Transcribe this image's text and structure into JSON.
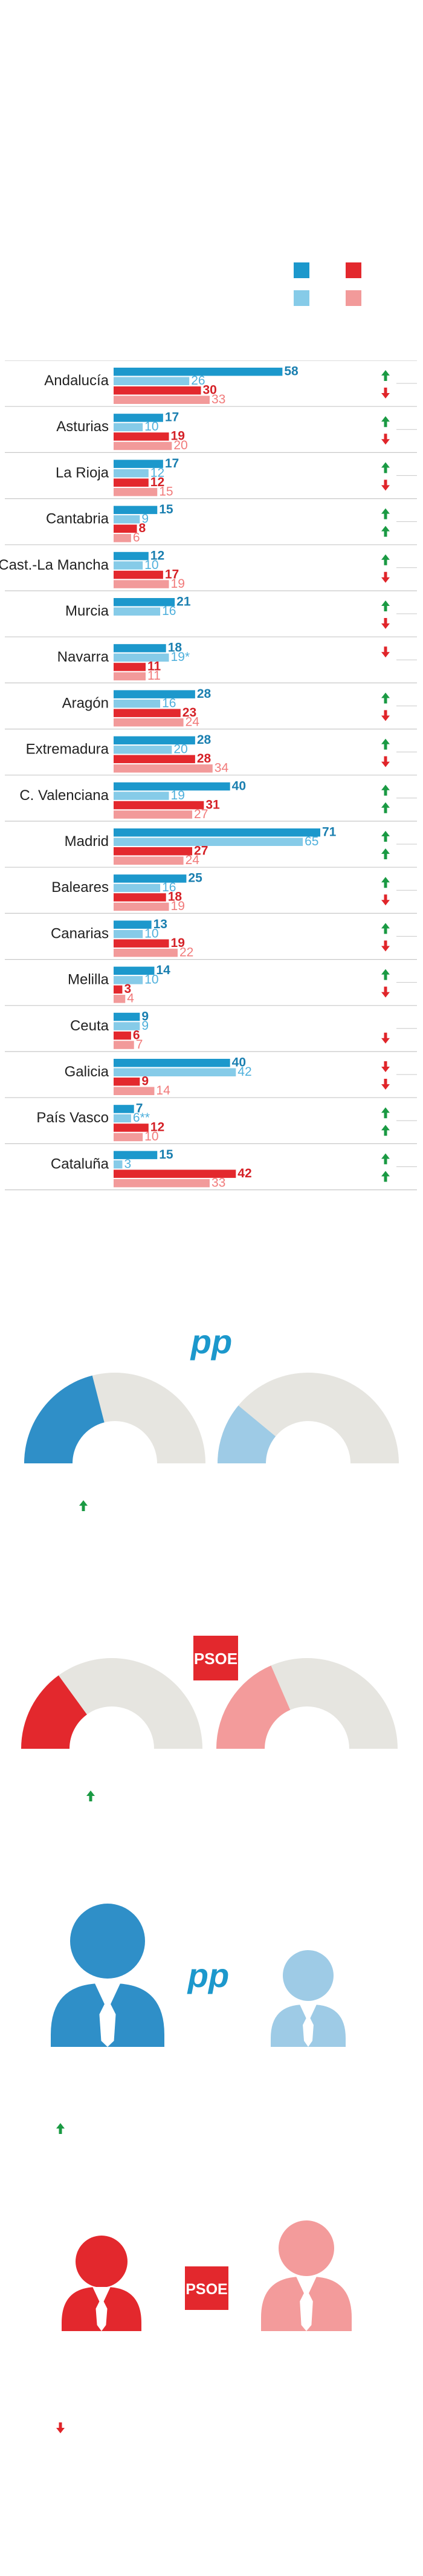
{
  "colors": {
    "pp_dark": "#1c98cc",
    "pp_light": "#86cbe8",
    "psoe_dark": "#e3282d",
    "psoe_light": "#f29a9a",
    "up": "#1a9a43",
    "down": "#e0252a",
    "grey": "#e6e5e0",
    "half_pp": "#2f8fc8",
    "half_pp_light": "#9ecbe6",
    "half_psoe": "#e3282d",
    "half_psoe_light": "#f39b9b"
  },
  "logos": {
    "pp": "pp",
    "psoe": "PSOE"
  },
  "chart_data": {
    "type": "bar",
    "categories": [
      "Andalucía",
      "Asturias",
      "La Rioja",
      "Cantabria",
      "Cast.-La Mancha",
      "Murcia",
      "Navarra",
      "Aragón",
      "Extremadura",
      "C. Valenciana",
      "Madrid",
      "Baleares",
      "Canarias",
      "Melilla",
      "Ceuta",
      "Galicia",
      "País Vasco",
      "Cataluña"
    ],
    "series": [
      {
        "values": [
          58,
          17,
          17,
          15,
          12,
          21,
          18,
          28,
          28,
          40,
          71,
          25,
          13,
          14,
          9,
          40,
          7,
          15
        ],
        "labels": [
          "58",
          "17",
          "17",
          "15",
          "12",
          "21",
          "18",
          "28",
          "28",
          "40",
          "71",
          "25",
          "13",
          "14",
          "9",
          "40",
          "7",
          "15"
        ]
      },
      {
        "values": [
          26,
          10,
          12,
          9,
          10,
          16,
          19,
          16,
          20,
          19,
          65,
          16,
          10,
          10,
          9,
          42,
          6,
          3
        ],
        "labels": [
          "26",
          "10",
          "12",
          "9",
          "10",
          "16",
          "19*",
          "16",
          "20",
          "19",
          "65",
          "16",
          "10",
          "10",
          "9",
          "42",
          "6**",
          "3"
        ]
      },
      {
        "values": [
          30,
          19,
          12,
          8,
          17,
          null,
          11,
          23,
          28,
          31,
          27,
          18,
          19,
          3,
          6,
          9,
          12,
          42
        ],
        "labels": [
          "30",
          "19",
          "12",
          "8",
          "17",
          "",
          "11",
          "23",
          "28",
          "31",
          "27",
          "18",
          "19",
          "3",
          "6",
          "9",
          "12",
          "42"
        ]
      },
      {
        "values": [
          33,
          20,
          15,
          6,
          19,
          null,
          11,
          24,
          34,
          27,
          24,
          19,
          22,
          4,
          7,
          14,
          10,
          33
        ],
        "labels": [
          "33",
          "20",
          "15",
          "6",
          "19",
          "",
          "11",
          "24",
          "34",
          "27",
          "24",
          "19",
          "22",
          "4",
          "7",
          "14",
          "10",
          "33"
        ]
      }
    ],
    "trend_pp": [
      "up",
      "up",
      "up",
      "up",
      "up",
      "up",
      "down",
      "up",
      "up",
      "up",
      "up",
      "up",
      "up",
      "up",
      "",
      "down",
      "up",
      "up"
    ],
    "trend_psoe": [
      "down",
      "down",
      "down",
      "up",
      "down",
      "down",
      "",
      "down",
      "down",
      "up",
      "up",
      "down",
      "down",
      "down",
      "down",
      "down",
      "up",
      "up"
    ],
    "xlim": [
      0,
      71
    ]
  },
  "gauges": [
    {
      "party": "pp",
      "current_fraction": 0.42,
      "previous_fraction": 0.22,
      "trend": "up"
    },
    {
      "party": "psoe",
      "current_fraction": 0.3,
      "previous_fraction": 0.37,
      "trend": "up"
    }
  ],
  "figures": [
    {
      "party": "pp",
      "trend": "up"
    },
    {
      "party": "psoe",
      "trend": "down"
    }
  ]
}
